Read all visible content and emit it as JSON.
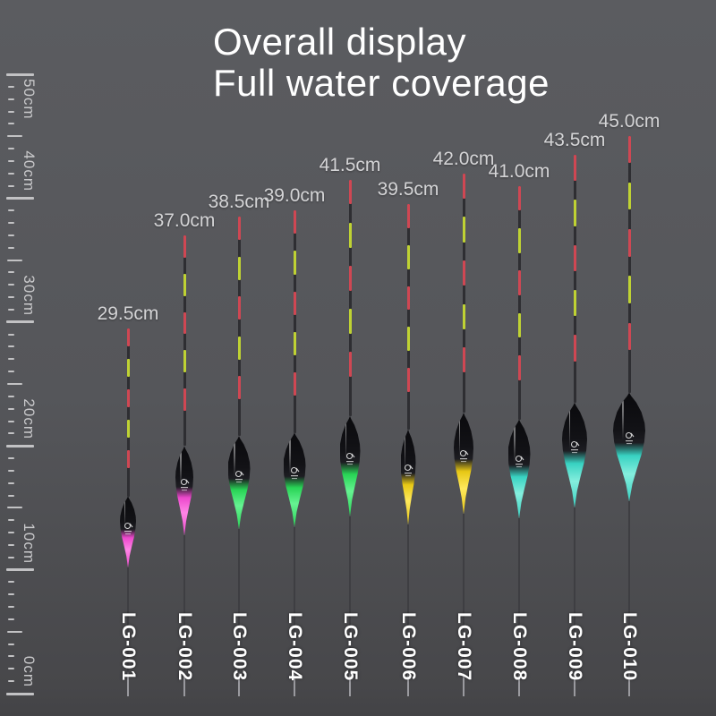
{
  "title": {
    "line1": "Overall display",
    "line2": "Full water coverage"
  },
  "ruler": {
    "unit": "cm",
    "min_cm": 0,
    "max_cm": 50,
    "minor_step_cm": 1,
    "medium_step_cm": 5,
    "major_step_cm": 10,
    "majors": [
      {
        "value": 50,
        "label": "50cm"
      },
      {
        "value": 40,
        "label": "40cm"
      },
      {
        "value": 30,
        "label": "30cm"
      },
      {
        "value": 20,
        "label": "20cm"
      },
      {
        "value": 10,
        "label": "10cm"
      },
      {
        "value": 0,
        "label": "0cm"
      }
    ]
  },
  "floats": [
    {
      "model": "LG-001",
      "size_label": "29.5cm",
      "height_cm": 29.5,
      "glow": "#ec48cc",
      "glow_bright": "#ff85e6"
    },
    {
      "model": "LG-002",
      "size_label": "37.0cm",
      "height_cm": 37.0,
      "glow": "#ec48cc",
      "glow_bright": "#ff85e6"
    },
    {
      "model": "LG-003",
      "size_label": "38.5cm",
      "height_cm": 38.5,
      "glow": "#28d455",
      "glow_bright": "#66f392"
    },
    {
      "model": "LG-004",
      "size_label": "39.0cm",
      "height_cm": 39.0,
      "glow": "#28d455",
      "glow_bright": "#66f392"
    },
    {
      "model": "LG-005",
      "size_label": "41.5cm",
      "height_cm": 41.5,
      "glow": "#28d455",
      "glow_bright": "#66f392"
    },
    {
      "model": "LG-006",
      "size_label": "39.5cm",
      "height_cm": 39.5,
      "glow": "#e6c614",
      "glow_bright": "#ffe95c"
    },
    {
      "model": "LG-007",
      "size_label": "42.0cm",
      "height_cm": 42.0,
      "glow": "#e6c614",
      "glow_bright": "#ffe95c"
    },
    {
      "model": "LG-008",
      "size_label": "41.0cm",
      "height_cm": 41.0,
      "glow": "#38d2c2",
      "glow_bright": "#85eedd"
    },
    {
      "model": "LG-009",
      "size_label": "43.5cm",
      "height_cm": 43.5,
      "glow": "#38d2c2",
      "glow_bright": "#85eedd"
    },
    {
      "model": "LG-010",
      "size_label": "45.0cm",
      "height_cm": 45.0,
      "glow": "#38d2c2",
      "glow_bright": "#85eedd"
    }
  ],
  "icons": {
    "body_logo": "brand-logo-icon"
  },
  "colors": {
    "background_top": "#5b5c60",
    "background_bottom": "#434346",
    "antenna_red": "#cf4753",
    "antenna_green": "#bfd233",
    "antenna_dark": "#2e2e32",
    "size_label_text": "#d4d4d6",
    "model_label_text": "#ffffff",
    "ruler_text": "#c9c9cb",
    "title_text": "#ffffff",
    "stem_dark": "#3e3e42",
    "stem_light_tip": "#9a9a9f"
  }
}
